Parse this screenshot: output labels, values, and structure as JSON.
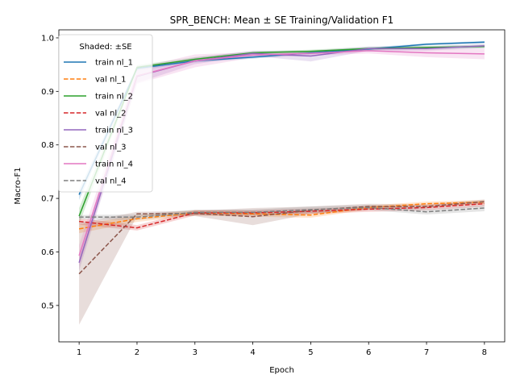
{
  "chart_data": {
    "type": "line",
    "title": "SPR_BENCH: Mean ± SE Training/Validation F1",
    "xlabel": "Epoch",
    "ylabel": "Macro-F1",
    "x": [
      1,
      2,
      3,
      4,
      5,
      6,
      7,
      8
    ],
    "xlim": [
      0.65,
      8.35
    ],
    "ylim": [
      0.432,
      1.015
    ],
    "xticks": [
      1,
      2,
      3,
      4,
      5,
      6,
      7,
      8
    ],
    "yticks": [
      0.5,
      0.6,
      0.7,
      0.8,
      0.9,
      1.0
    ],
    "ytick_labels": [
      "0.5",
      "0.6",
      "0.7",
      "0.8",
      "0.9",
      "1.0"
    ],
    "grid": false,
    "legend": {
      "title": "Shaded: ±SE",
      "position": "upper-left"
    },
    "series": [
      {
        "name": "train nl_1",
        "color": "#1f77b4",
        "style": "solid",
        "values": [
          0.707,
          0.943,
          0.957,
          0.964,
          0.972,
          0.979,
          0.988,
          0.992
        ],
        "se": [
          0.01,
          0.004,
          0.003,
          0.003,
          0.003,
          0.003,
          0.002,
          0.002
        ]
      },
      {
        "name": "val nl_1",
        "color": "#ff7f0e",
        "style": "dashed",
        "values": [
          0.643,
          0.662,
          0.673,
          0.671,
          0.669,
          0.683,
          0.69,
          0.693
        ],
        "se": [
          0.008,
          0.006,
          0.005,
          0.005,
          0.005,
          0.004,
          0.004,
          0.004
        ]
      },
      {
        "name": "train nl_2",
        "color": "#2ca02c",
        "style": "solid",
        "values": [
          0.667,
          0.945,
          0.96,
          0.972,
          0.975,
          0.98,
          0.982,
          0.984
        ],
        "se": [
          0.015,
          0.004,
          0.004,
          0.003,
          0.003,
          0.003,
          0.003,
          0.003
        ]
      },
      {
        "name": "val nl_2",
        "color": "#d62728",
        "style": "dashed",
        "values": [
          0.657,
          0.645,
          0.673,
          0.673,
          0.676,
          0.68,
          0.683,
          0.69
        ],
        "se": [
          0.006,
          0.005,
          0.005,
          0.005,
          0.005,
          0.005,
          0.005,
          0.005
        ]
      },
      {
        "name": "train nl_3",
        "color": "#9467bd",
        "style": "solid",
        "values": [
          0.58,
          0.928,
          0.957,
          0.971,
          0.966,
          0.98,
          0.98,
          0.985
        ],
        "se": [
          0.015,
          0.012,
          0.006,
          0.005,
          0.01,
          0.004,
          0.004,
          0.004
        ]
      },
      {
        "name": "val nl_3",
        "color": "#8c564b",
        "style": "dashed",
        "values": [
          0.559,
          0.671,
          0.672,
          0.666,
          0.678,
          0.685,
          0.685,
          0.694
        ],
        "se": [
          0.095,
          0.004,
          0.005,
          0.016,
          0.007,
          0.005,
          0.004,
          0.004
        ]
      },
      {
        "name": "train nl_4",
        "color": "#e377c2",
        "style": "solid",
        "values": [
          0.593,
          0.929,
          0.957,
          0.968,
          0.971,
          0.976,
          0.972,
          0.97
        ],
        "se": [
          0.02,
          0.015,
          0.012,
          0.005,
          0.004,
          0.005,
          0.008,
          0.01
        ]
      },
      {
        "name": "val nl_4",
        "color": "#7f7f7f",
        "style": "dashed",
        "values": [
          0.665,
          0.665,
          0.674,
          0.674,
          0.679,
          0.683,
          0.675,
          0.682
        ],
        "se": [
          0.004,
          0.005,
          0.005,
          0.005,
          0.006,
          0.005,
          0.005,
          0.006
        ]
      }
    ]
  }
}
